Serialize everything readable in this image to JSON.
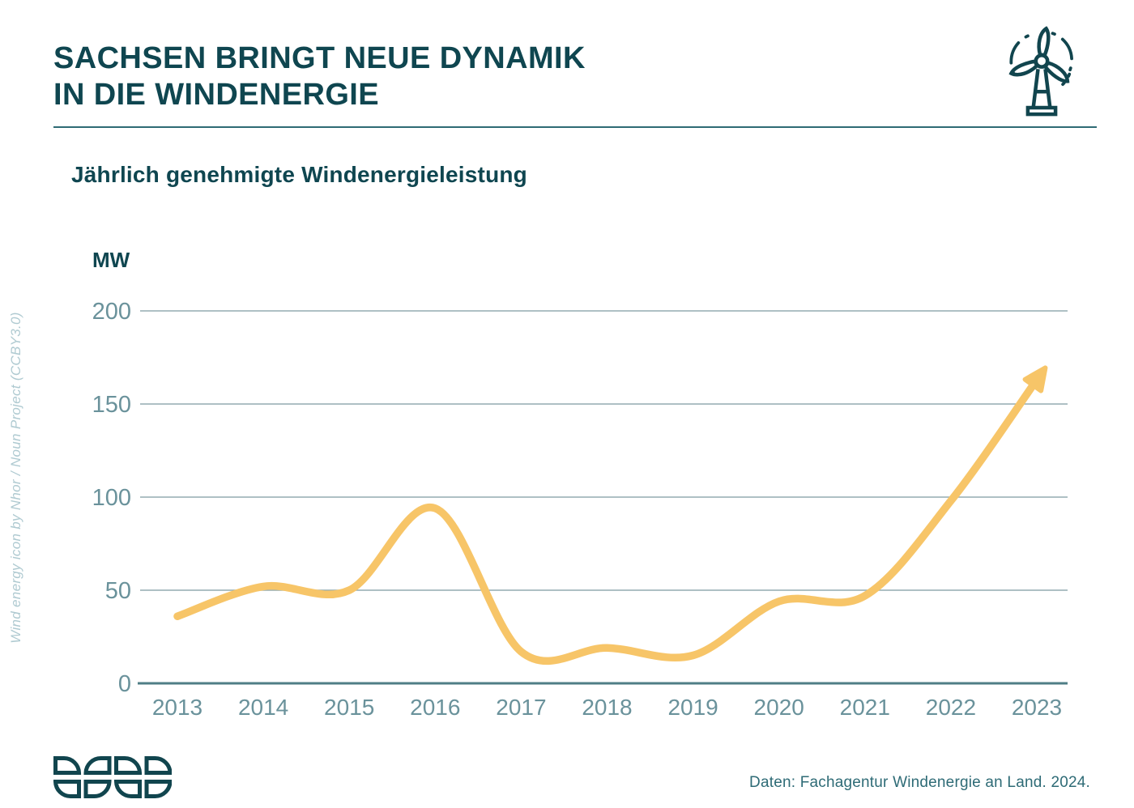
{
  "header": {
    "title_line1": "SACHSEN BRINGT NEUE DYNAMIK",
    "title_line2": "IN DIE WINDENERGIE"
  },
  "chart": {
    "subtitle": "Jährlich genehmigte Windenergieleistung",
    "unit_label": "MW"
  },
  "chart_data": {
    "type": "line",
    "title": "Jährlich genehmigte Windenergieleistung",
    "unit": "MW",
    "x": [
      2013,
      2014,
      2015,
      2016,
      2017,
      2018,
      2019,
      2020,
      2021,
      2022,
      2023
    ],
    "values": [
      36,
      52,
      50,
      94,
      17,
      19,
      15,
      44,
      47,
      98,
      163
    ],
    "ylabel": "MW",
    "ylim": [
      0,
      200
    ],
    "yticks": [
      0,
      50,
      100,
      150,
      200
    ],
    "grid": true,
    "legend": "none",
    "end_arrow": true
  },
  "icons": {
    "turbine": "wind-turbine-icon",
    "logo": "good-logo"
  },
  "credit": {
    "text": "Wind energy icon by Nhor / Noun Project (CCBY3.0)"
  },
  "footer": {
    "source": "Daten: Fachagentur Windenergie an Land. 2024."
  },
  "colors": {
    "title": "#0F4650",
    "line": "#F7C568",
    "grid": "#93ABB0",
    "axis": "#4F7E86",
    "axis_text": "#6A929B",
    "credit_text": "#AFCAD1",
    "source_text": "#2E6B76",
    "rule": "#2E6B74"
  }
}
